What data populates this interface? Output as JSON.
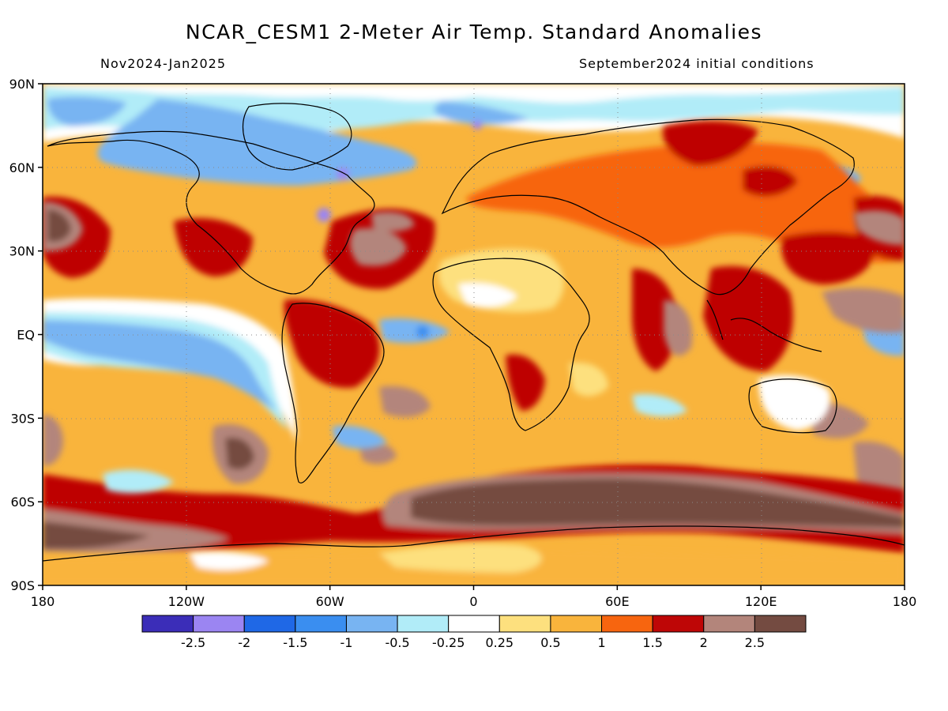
{
  "title": "NCAR_CESM1 2-Meter Air Temp. Standard Anomalies",
  "subtitle_left": "Nov2024-Jan2025",
  "subtitle_right": "September2024 initial conditions",
  "map": {
    "projection": "equirectangular",
    "lon_range": [
      -180,
      180
    ],
    "lat_range": [
      -90,
      90
    ],
    "gridlines": "dotted",
    "coastlines": true
  },
  "lat_ticks": [
    {
      "value": 90,
      "label": "90N"
    },
    {
      "value": 60,
      "label": "60N"
    },
    {
      "value": 30,
      "label": "30N"
    },
    {
      "value": 0,
      "label": "EQ"
    },
    {
      "value": -30,
      "label": "30S"
    },
    {
      "value": -60,
      "label": "60S"
    },
    {
      "value": -90,
      "label": "90S"
    }
  ],
  "lon_ticks": [
    {
      "value": -180,
      "label": "180"
    },
    {
      "value": -120,
      "label": "120W"
    },
    {
      "value": -60,
      "label": "60W"
    },
    {
      "value": 0,
      "label": "0"
    },
    {
      "value": 60,
      "label": "60E"
    },
    {
      "value": 120,
      "label": "120E"
    },
    {
      "value": 180,
      "label": "180"
    }
  ],
  "colorbar": {
    "colors": [
      "#3b2db8",
      "#9b85f2",
      "#1f68e6",
      "#3a8ef0",
      "#78b4f2",
      "#b1ecf8",
      "#ffffff",
      "#fde07e",
      "#f9b43c",
      "#f7650f",
      "#be0606",
      "#b3857b",
      "#744b41"
    ],
    "labels": [
      "-2.5",
      "-2",
      "-1.5",
      "-1",
      "-0.5",
      "-0.25",
      "0.25",
      "0.5",
      "1",
      "1.5",
      "2",
      "2.5"
    ]
  },
  "colors": {
    "land_outline": "#000000",
    "dominant_background": "#f9b43c"
  }
}
